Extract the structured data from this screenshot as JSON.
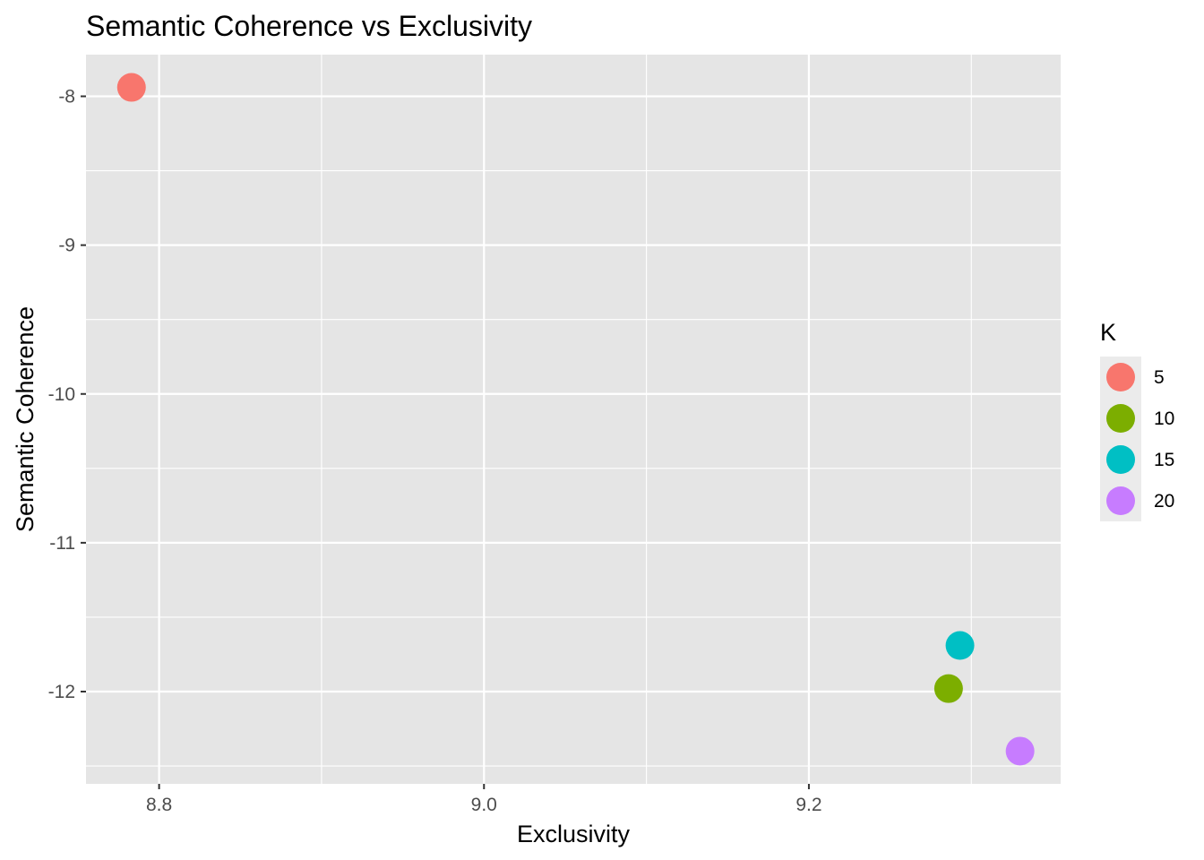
{
  "chart_data": {
    "type": "scatter",
    "title": "Semantic Coherence vs Exclusivity",
    "xlabel": "Exclusivity",
    "ylabel": "Semantic Coherence",
    "xlim": [
      8.755,
      9.355
    ],
    "ylim": [
      -12.62,
      -7.72
    ],
    "x_ticks": [
      8.8,
      9.0,
      9.2
    ],
    "x_tick_labels": [
      "8.8",
      "9.0",
      "9.2"
    ],
    "y_ticks": [
      -8,
      -9,
      -10,
      -11,
      -12
    ],
    "y_tick_labels": [
      "-8",
      "-9",
      "-10",
      "-11",
      "-12"
    ],
    "grid": true,
    "legend": {
      "title": "K",
      "position": "right",
      "entries": [
        {
          "label": "5",
          "color": "#F8766D"
        },
        {
          "label": "10",
          "color": "#7CAE00"
        },
        {
          "label": "15",
          "color": "#00BFC4"
        },
        {
          "label": "20",
          "color": "#C77CFF"
        }
      ]
    },
    "points": [
      {
        "k": "5",
        "x": 8.783,
        "y": -7.94,
        "color": "#F8766D"
      },
      {
        "k": "10",
        "x": 9.286,
        "y": -11.98,
        "color": "#7CAE00"
      },
      {
        "k": "15",
        "x": 9.293,
        "y": -11.69,
        "color": "#00BFC4"
      },
      {
        "k": "20",
        "x": 9.33,
        "y": -12.4,
        "color": "#C77CFF"
      }
    ]
  },
  "colors": {
    "panel_background": "#E5E5E5",
    "grid": "#FFFFFF",
    "legend_key_background": "#EBEBEB"
  }
}
